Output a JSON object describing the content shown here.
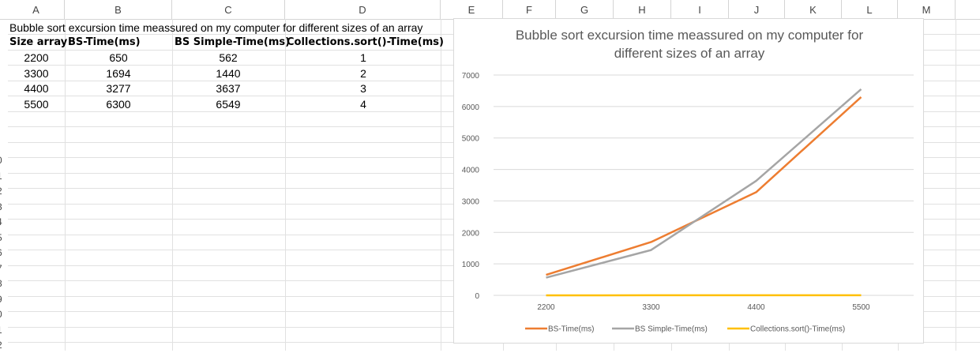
{
  "columns": [
    "A",
    "B",
    "C",
    "D",
    "E",
    "F",
    "G",
    "H",
    "I",
    "J",
    "K",
    "L",
    "M"
  ],
  "row_numbers": [
    "0",
    "1",
    "2",
    "3",
    "4",
    "5",
    "6",
    "7",
    "8",
    "9",
    "0",
    "1",
    "2"
  ],
  "sheet": {
    "title": "Bubble sort excursion time meassured on my computer for different sizes of an array",
    "headers": [
      "Size array",
      "BS-Time(ms)",
      "BS Simple-Time(ms)",
      "Collections.sort()-Time(ms)"
    ],
    "rows": [
      [
        "2200",
        "650",
        "562",
        "1"
      ],
      [
        "3300",
        "1694",
        "1440",
        "2"
      ],
      [
        "4400",
        "3277",
        "3637",
        "3"
      ],
      [
        "5500",
        "6300",
        "6549",
        "4"
      ]
    ]
  },
  "chart_data": {
    "type": "line",
    "title_lines": [
      "Bubble sort excursion time meassured on my computer for",
      "different sizes of an array"
    ],
    "categories": [
      "2200",
      "3300",
      "4400",
      "5500"
    ],
    "series": [
      {
        "name": "BS-Time(ms)",
        "values": [
          650,
          1694,
          3277,
          6300
        ],
        "color": "#ED7D31"
      },
      {
        "name": "BS Simple-Time(ms)",
        "values": [
          562,
          1440,
          3637,
          6549
        ],
        "color": "#A5A5A5"
      },
      {
        "name": "Collections.sort()-Time(ms)",
        "values": [
          1,
          2,
          3,
          4
        ],
        "color": "#FFC000"
      }
    ],
    "ylim": [
      0,
      7000
    ],
    "yticks": [
      "0",
      "1000",
      "2000",
      "3000",
      "4000",
      "5000",
      "6000",
      "7000"
    ],
    "grid": true,
    "legend": "bottom"
  }
}
